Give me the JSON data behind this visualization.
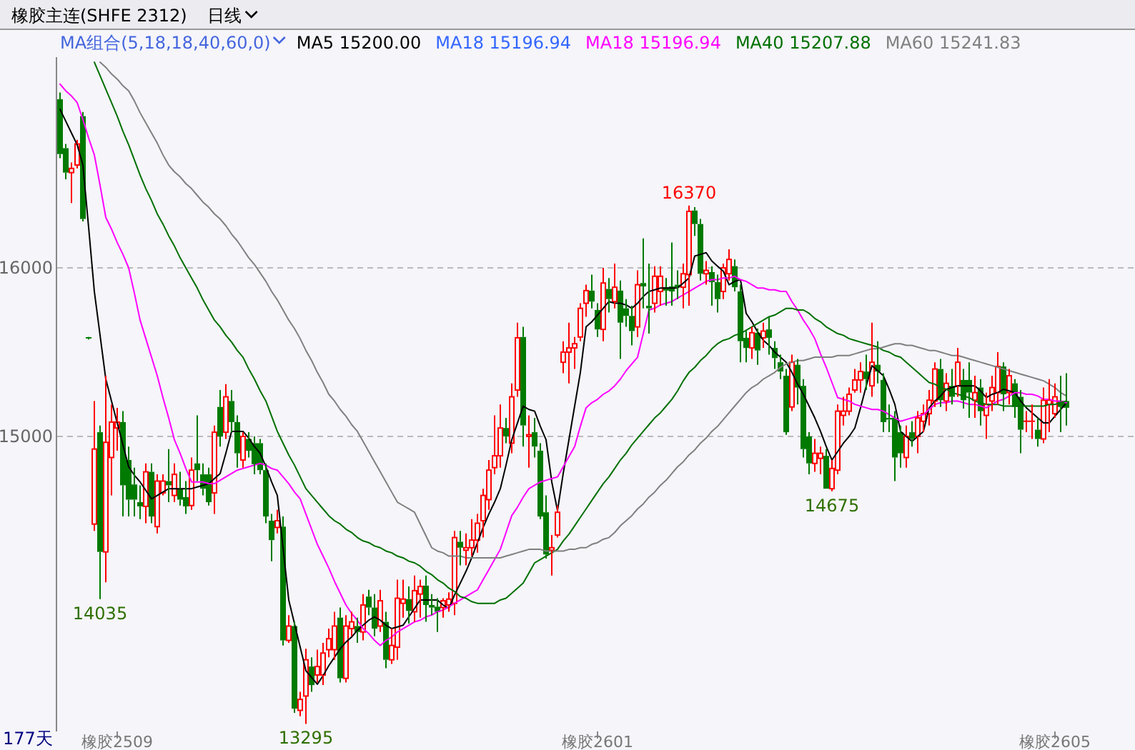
{
  "chart_data": {
    "type": "candlestick",
    "title": "橡胶主连(SHFE 2312)",
    "subtitle": "日线",
    "categories": [
      null,
      null,
      null,
      null,
      null,
      null,
      null,
      null,
      null,
      null,
      "橡胶2509",
      null,
      null,
      null,
      null,
      null,
      null,
      null,
      null,
      null,
      null,
      null,
      null,
      null,
      null,
      null,
      null,
      null,
      null,
      null,
      null,
      null,
      null,
      null,
      null,
      null,
      null,
      null,
      null,
      null,
      null,
      null,
      null,
      null,
      null,
      null,
      null,
      null,
      null,
      null,
      null,
      null,
      null,
      null,
      null,
      null,
      null,
      null,
      null,
      null,
      null,
      null,
      null,
      null,
      null,
      null,
      null,
      null,
      null,
      null,
      null,
      null,
      null,
      null,
      null,
      null,
      null,
      null,
      null,
      null,
      null,
      null,
      null,
      null,
      null,
      null,
      null,
      null,
      null,
      null,
      null,
      null,
      null,
      null,
      "橡胶2601",
      null,
      null,
      null,
      null,
      null,
      null,
      null,
      null,
      null,
      null,
      null,
      null,
      null,
      null,
      null,
      null,
      null,
      null,
      null,
      null,
      null,
      null,
      null,
      null,
      null,
      null,
      null,
      null,
      null,
      null,
      null,
      null,
      null,
      null,
      null,
      null,
      null,
      null,
      null,
      null,
      null,
      null,
      null,
      null,
      null,
      null,
      null,
      null,
      null,
      null,
      null,
      null,
      null,
      null,
      null,
      null,
      null,
      null,
      null,
      null,
      null,
      null,
      null,
      null,
      null,
      null,
      null,
      null,
      null,
      null,
      null,
      null,
      null,
      null,
      null,
      null,
      null,
      null,
      null,
      "橡胶2605",
      null,
      null
    ],
    "ohlc": [
      [
        17000,
        17040,
        16650,
        16675
      ],
      [
        16710,
        16735,
        16525,
        16565
      ],
      [
        16565,
        16625,
        16385,
        16590
      ],
      [
        16610,
        16760,
        16590,
        16735
      ],
      [
        16900,
        16925,
        16275,
        16290
      ],
      [
        15585,
        15590,
        15575,
        15580
      ],
      [
        14480,
        15210,
        14440,
        14925
      ],
      [
        15025,
        15065,
        14035,
        14315
      ],
      [
        14315,
        15360,
        14135,
        14965
      ],
      [
        14875,
        15190,
        14650,
        15085
      ],
      [
        15050,
        15170,
        14915,
        15085
      ],
      [
        15085,
        15150,
        14525,
        14710
      ],
      [
        14860,
        14940,
        14525,
        14625
      ],
      [
        14715,
        14815,
        14525,
        14625
      ],
      [
        14610,
        14710,
        14510,
        14585
      ],
      [
        14585,
        14840,
        14485,
        14790
      ],
      [
        14790,
        14840,
        14485,
        14525
      ],
      [
        14465,
        14775,
        14425,
        14735
      ],
      [
        14665,
        14775,
        14650,
        14735
      ],
      [
        14735,
        14925,
        14610,
        14710
      ],
      [
        14650,
        14840,
        14610,
        14775
      ],
      [
        14690,
        14790,
        14590,
        14625
      ],
      [
        14640,
        14735,
        14540,
        14585
      ],
      [
        14590,
        14875,
        14565,
        14800
      ],
      [
        14840,
        15125,
        14735,
        14800
      ],
      [
        14775,
        14840,
        14650,
        14690
      ],
      [
        14775,
        14815,
        14590,
        14610
      ],
      [
        14665,
        15065,
        14540,
        15025
      ],
      [
        15175,
        15275,
        14940,
        15000
      ],
      [
        15025,
        15310,
        14985,
        15235
      ],
      [
        15210,
        15275,
        15025,
        15085
      ],
      [
        15085,
        15125,
        14815,
        14900
      ],
      [
        14860,
        15025,
        14815,
        15000
      ],
      [
        14985,
        15025,
        14875,
        14915
      ],
      [
        14960,
        15000,
        14775,
        14835
      ],
      [
        14960,
        14985,
        14775,
        14800
      ],
      [
        14800,
        14840,
        14485,
        14525
      ],
      [
        14500,
        14540,
        14260,
        14385
      ],
      [
        14460,
        14565,
        14425,
        14500
      ],
      [
        14465,
        14525,
        13760,
        13790
      ],
      [
        13790,
        13940,
        13775,
        13875
      ],
      [
        13875,
        13900,
        13360,
        13385
      ],
      [
        13375,
        13485,
        13340,
        13440
      ],
      [
        13460,
        13740,
        13295,
        13675
      ],
      [
        13635,
        13690,
        13485,
        13525
      ],
      [
        13585,
        13735,
        13540,
        13635
      ],
      [
        13585,
        13775,
        13525,
        13715
      ],
      [
        13735,
        13860,
        13690,
        13800
      ],
      [
        13735,
        13960,
        13675,
        13875
      ],
      [
        13925,
        13985,
        13540,
        13565
      ],
      [
        13565,
        13940,
        13540,
        13875
      ],
      [
        13860,
        13960,
        13815,
        13900
      ],
      [
        13875,
        13925,
        13775,
        13840
      ],
      [
        13840,
        14065,
        13790,
        14000
      ],
      [
        14050,
        14090,
        13940,
        13985
      ],
      [
        13985,
        14065,
        13815,
        13860
      ],
      [
        13875,
        14090,
        13840,
        14025
      ],
      [
        13900,
        13960,
        13625,
        13675
      ],
      [
        13675,
        13860,
        13650,
        13760
      ],
      [
        13750,
        14150,
        13675,
        14040
      ],
      [
        14010,
        14150,
        13925,
        14035
      ],
      [
        14035,
        14110,
        13890,
        13965
      ],
      [
        13960,
        14175,
        13900,
        14085
      ],
      [
        14065,
        14150,
        13925,
        14110
      ],
      [
        14115,
        14175,
        13900,
        14000
      ],
      [
        14000,
        14065,
        13940,
        13985
      ],
      [
        13990,
        14040,
        13840,
        13960
      ],
      [
        13985,
        14040,
        13925,
        14025
      ],
      [
        14000,
        14075,
        13960,
        14035
      ],
      [
        14010,
        14440,
        13940,
        14400
      ],
      [
        14375,
        14440,
        14235,
        14340
      ],
      [
        14325,
        14425,
        14235,
        14340
      ],
      [
        14340,
        14510,
        14290,
        14385
      ],
      [
        14385,
        14540,
        14310,
        14485
      ],
      [
        14500,
        14690,
        14400,
        14650
      ],
      [
        14625,
        14860,
        14565,
        14800
      ],
      [
        14815,
        15125,
        14775,
        14885
      ],
      [
        14885,
        15190,
        14815,
        15050
      ],
      [
        15050,
        15110,
        14960,
        15000
      ],
      [
        14960,
        15315,
        14900,
        15235
      ],
      [
        15275,
        15675,
        15235,
        15585
      ],
      [
        15590,
        15650,
        14940,
        15065
      ],
      [
        15000,
        15125,
        14815,
        15010
      ],
      [
        15025,
        15110,
        14875,
        14940
      ],
      [
        14915,
        14960,
        14510,
        14525
      ],
      [
        14550,
        14650,
        14275,
        14300
      ],
      [
        14325,
        14415,
        14175,
        14340
      ],
      [
        14415,
        14590,
        14400,
        14550
      ],
      [
        15440,
        15565,
        15375,
        15500
      ],
      [
        15500,
        15675,
        15315,
        15525
      ],
      [
        15525,
        15590,
        15400,
        15550
      ],
      [
        15590,
        15790,
        15565,
        15760
      ],
      [
        15790,
        15900,
        15710,
        15865
      ],
      [
        15865,
        15960,
        15760,
        15800
      ],
      [
        15750,
        15790,
        15590,
        15635
      ],
      [
        15635,
        16000,
        15565,
        15910
      ],
      [
        15875,
        15940,
        15735,
        15815
      ],
      [
        15800,
        16025,
        15760,
        15885
      ],
      [
        15865,
        15925,
        15460,
        15675
      ],
      [
        15760,
        15815,
        15650,
        15715
      ],
      [
        15715,
        15775,
        15540,
        15625
      ],
      [
        15650,
        15985,
        15590,
        15900
      ],
      [
        15910,
        16175,
        15760,
        15890
      ],
      [
        15775,
        16025,
        15610,
        15760
      ],
      [
        15790,
        16010,
        15735,
        15950
      ],
      [
        15860,
        16010,
        15775,
        15950
      ],
      [
        15885,
        15940,
        15775,
        15865
      ],
      [
        15890,
        16150,
        15775,
        15860
      ],
      [
        15900,
        15985,
        15815,
        15885
      ],
      [
        15885,
        16025,
        15760,
        15965
      ],
      [
        15960,
        16370,
        15775,
        16335
      ],
      [
        16340,
        16360,
        16190,
        16260
      ],
      [
        16260,
        16290,
        15925,
        15965
      ],
      [
        15965,
        16040,
        15900,
        15985
      ],
      [
        15975,
        16010,
        15775,
        15915
      ],
      [
        15915,
        15960,
        15735,
        15815
      ],
      [
        15860,
        16025,
        15815,
        16000
      ],
      [
        15965,
        16110,
        15925,
        16050
      ],
      [
        16010,
        16050,
        15860,
        15885
      ],
      [
        15860,
        15900,
        15440,
        15565
      ],
      [
        15585,
        15625,
        15440,
        15525
      ],
      [
        15525,
        15650,
        15460,
        15615
      ],
      [
        15615,
        15640,
        15425,
        15510
      ],
      [
        15585,
        15675,
        15525,
        15625
      ],
      [
        15635,
        15710,
        15485,
        15585
      ],
      [
        15525,
        15565,
        15400,
        15465
      ],
      [
        15440,
        15485,
        15340,
        15385
      ],
      [
        15360,
        15400,
        15010,
        15025
      ],
      [
        15175,
        15485,
        15150,
        15440
      ],
      [
        15425,
        15460,
        15190,
        15290
      ],
      [
        15300,
        15340,
        14875,
        14925
      ],
      [
        15000,
        15025,
        14775,
        14840
      ],
      [
        14840,
        14985,
        14790,
        14900
      ],
      [
        14870,
        14940,
        14775,
        14900
      ],
      [
        14885,
        14925,
        14690,
        14690
      ],
      [
        14690,
        14860,
        14675,
        14810
      ],
      [
        14800,
        15190,
        14775,
        15150
      ],
      [
        15125,
        15235,
        15065,
        15150
      ],
      [
        15150,
        15290,
        15125,
        15250
      ],
      [
        15275,
        15400,
        15260,
        15335
      ],
      [
        15335,
        15440,
        15260,
        15385
      ],
      [
        15385,
        15485,
        15275,
        15340
      ],
      [
        15300,
        15675,
        15235,
        15440
      ],
      [
        15425,
        15565,
        15315,
        15385
      ],
      [
        15335,
        15375,
        15025,
        15085
      ],
      [
        15110,
        15190,
        15025,
        15100
      ],
      [
        15110,
        15150,
        14735,
        14875
      ],
      [
        15025,
        15065,
        14815,
        14900
      ],
      [
        14875,
        15065,
        14815,
        15000
      ],
      [
        15025,
        15090,
        14940,
        14985
      ],
      [
        15000,
        15150,
        14900,
        15110
      ],
      [
        15090,
        15190,
        15025,
        15135
      ],
      [
        15135,
        15275,
        15065,
        15215
      ],
      [
        15210,
        15440,
        15175,
        15400
      ],
      [
        15400,
        15460,
        15175,
        15215
      ],
      [
        15210,
        15375,
        15150,
        15315
      ],
      [
        15300,
        15400,
        15190,
        15235
      ],
      [
        15300,
        15525,
        15235,
        15440
      ],
      [
        15335,
        15400,
        15165,
        15215
      ],
      [
        15335,
        15440,
        15110,
        15260
      ],
      [
        15215,
        15360,
        15110,
        15260
      ],
      [
        15290,
        15340,
        15065,
        15150
      ],
      [
        15125,
        15260,
        14985,
        15190
      ],
      [
        15210,
        15360,
        15150,
        15290
      ],
      [
        15260,
        15500,
        15190,
        15415
      ],
      [
        15415,
        15440,
        15150,
        15250
      ],
      [
        15260,
        15400,
        15190,
        15360
      ],
      [
        15315,
        15340,
        15110,
        15175
      ],
      [
        15235,
        15275,
        14900,
        15040
      ],
      [
        15090,
        15150,
        15025,
        15090
      ],
      [
        15085,
        15190,
        14985,
        15090
      ],
      [
        15040,
        15110,
        14940,
        14985
      ],
      [
        14985,
        15290,
        14960,
        15215
      ],
      [
        15190,
        15340,
        15025,
        15215
      ],
      [
        15135,
        15315,
        15110,
        15235
      ],
      [
        15210,
        15360,
        15025,
        15175
      ],
      [
        15210,
        15375,
        15065,
        15170
      ]
    ],
    "series": [
      {
        "name": "MA5 15200.00",
        "type": "line",
        "color": "#000000",
        "values": [
          16940,
          16870,
          16800,
          16730,
          16610,
          16240,
          15860,
          15600,
          15340,
          15210,
          15080,
          14950,
          14820,
          14770,
          14730,
          14680,
          14630,
          14650,
          14670,
          14690,
          14690,
          14690,
          14690,
          14690,
          14700,
          14710,
          14720,
          14750,
          14780,
          14900,
          15030,
          15030,
          15030,
          14990,
          14940,
          14900,
          14820,
          14730,
          14650,
          14340,
          14030,
          13890,
          13750,
          13610,
          13570,
          13530,
          13580,
          13640,
          13690,
          13740,
          13780,
          13810,
          13850,
          13880,
          13910,
          13930,
          13910,
          13880,
          13860,
          13870,
          13880,
          13930,
          13980,
          14030,
          14030,
          14030,
          14030,
          14000,
          13980,
          14060,
          14130,
          14200,
          14280,
          14370,
          14460,
          14540,
          14610,
          14690,
          14830,
          14980,
          15080,
          15180,
          15160,
          15150,
          15060,
          14980,
          14730,
          14560,
          14780,
          14980,
          15180,
          15380,
          15650,
          15680,
          15720,
          15760,
          15800,
          15790,
          15790,
          15780,
          15760,
          15790,
          15830,
          15860,
          15870,
          15880,
          15880,
          15880,
          15880,
          15910,
          15940,
          16070,
          16080,
          16090,
          16040,
          16010,
          15980,
          15900,
          15920,
          15930,
          15730,
          15680,
          15620,
          15570,
          15540,
          15500,
          15470,
          15440,
          15380,
          15310,
          15250,
          15180,
          15110,
          15030,
          14940,
          14860,
          14910,
          14960,
          15000,
          15050,
          15170,
          15300,
          15420,
          15390,
          15360,
          15280,
          15190,
          15030,
          15000,
          14970,
          15000,
          15030,
          15170,
          15210,
          15240,
          15280,
          15290,
          15300,
          15300,
          15300,
          15300,
          15270,
          15230,
          15250,
          15260,
          15280,
          15270,
          15260,
          15210,
          15170,
          15140,
          15110,
          15080,
          15080,
          15120,
          15160,
          15200
        ]
      },
      {
        "name": "MA18 15196.94",
        "type": "line",
        "color": "#3366ff",
        "values": [
          null,
          null,
          null,
          null,
          null,
          null,
          null,
          null,
          null,
          null,
          null,
          null,
          null,
          null,
          null,
          null,
          null,
          null,
          null,
          null,
          null,
          null,
          null,
          null,
          null,
          null,
          null,
          null,
          null,
          null,
          null,
          null,
          null,
          null,
          null,
          null,
          null,
          null,
          null,
          null,
          null,
          null,
          null,
          null,
          null,
          null,
          null,
          null,
          null,
          null,
          null,
          null,
          null,
          null,
          null,
          null,
          null,
          null,
          null,
          null,
          null,
          null,
          null,
          null,
          null,
          null,
          null,
          null,
          null,
          null,
          null,
          null,
          null,
          null,
          null,
          null,
          null,
          null,
          null,
          null,
          null,
          null,
          null,
          null,
          null,
          null,
          null,
          null,
          null,
          null,
          null,
          null,
          null,
          null,
          null,
          null,
          null,
          null,
          null,
          null,
          null,
          null,
          null,
          null,
          null,
          null,
          null,
          null,
          null,
          null,
          null,
          null,
          null,
          null,
          null,
          null,
          null,
          null,
          null,
          null,
          null,
          null,
          null,
          null,
          null,
          null,
          null,
          null,
          null,
          null,
          null,
          null,
          null,
          null,
          null,
          null,
          null,
          null,
          null,
          null,
          null,
          null,
          null,
          null,
          null,
          null,
          null,
          null,
          null,
          null,
          null,
          null,
          null,
          null,
          null,
          null,
          null,
          null,
          null,
          null,
          null,
          null,
          null,
          null,
          null,
          null,
          null,
          null,
          null,
          null,
          null,
          null,
          null,
          null,
          null,
          null,
          null
        ]
      },
      {
        "name": "MA18 15196.94",
        "type": "line",
        "color": "#ff00ff",
        "values": [
          17090,
          17050,
          17020,
          16980,
          16880,
          16770,
          16670,
          16490,
          16300,
          16230,
          16150,
          16080,
          16000,
          15850,
          15690,
          15580,
          15470,
          15360,
          15230,
          15110,
          14980,
          14900,
          14810,
          14730,
          14730,
          14730,
          14720,
          14720,
          14740,
          14760,
          14780,
          14800,
          14810,
          14820,
          14830,
          14840,
          14830,
          14810,
          14800,
          14760,
          14720,
          14670,
          14630,
          14540,
          14450,
          14360,
          14290,
          14220,
          14140,
          14070,
          14000,
          13950,
          13910,
          13860,
          13830,
          13790,
          13760,
          13790,
          13810,
          13840,
          13860,
          13880,
          13900,
          13910,
          13930,
          13940,
          13960,
          13970,
          13990,
          14010,
          14030,
          14050,
          14070,
          14090,
          14150,
          14210,
          14270,
          14330,
          14430,
          14530,
          14580,
          14640,
          14690,
          14710,
          14730,
          14740,
          14750,
          14760,
          14820,
          14880,
          14940,
          15060,
          15170,
          15200,
          15220,
          15250,
          15270,
          15300,
          15340,
          15390,
          15430,
          15470,
          15610,
          15750,
          15760,
          15780,
          15790,
          15800,
          15820,
          15840,
          15860,
          15880,
          15900,
          15920,
          15930,
          15930,
          15940,
          15940,
          15950,
          15930,
          15920,
          15900,
          15880,
          15880,
          15870,
          15870,
          15860,
          15860,
          15800,
          15750,
          15690,
          15640,
          15580,
          15490,
          15410,
          15320,
          15230,
          15220,
          15210,
          15190,
          15180,
          15170,
          15160,
          15160,
          15150,
          15130,
          15110,
          15090,
          15100,
          15110,
          15120,
          15130,
          15160,
          15190,
          15200,
          15200,
          15210,
          15210,
          15200,
          15190,
          15190,
          15180,
          15170,
          15190,
          15210,
          15220,
          15240,
          15260,
          15260,
          15250,
          15250,
          15240,
          15220,
          15220,
          15210,
          15210,
          15200
        ]
      },
      {
        "name": "MA40 15207.88",
        "type": "line",
        "color": "#007000",
        "values": [
          null,
          null,
          null,
          null,
          null,
          null,
          17220,
          17140,
          17060,
          16980,
          16900,
          16810,
          16730,
          16640,
          16550,
          16470,
          16400,
          16320,
          16260,
          16190,
          16130,
          16060,
          16000,
          15940,
          15880,
          15810,
          15750,
          15690,
          15650,
          15600,
          15560,
          15510,
          15470,
          15400,
          15340,
          15270,
          15210,
          15120,
          15030,
          14960,
          14890,
          14830,
          14760,
          14690,
          14650,
          14610,
          14570,
          14530,
          14500,
          14480,
          14450,
          14430,
          14400,
          14380,
          14370,
          14350,
          14340,
          14320,
          14310,
          14290,
          14280,
          14260,
          14250,
          14230,
          14200,
          14180,
          14150,
          14130,
          14100,
          14080,
          14050,
          14040,
          14020,
          14010,
          14010,
          14010,
          14010,
          14030,
          14040,
          14070,
          14100,
          14130,
          14190,
          14250,
          14270,
          14290,
          14310,
          14330,
          14380,
          14420,
          14470,
          14520,
          14570,
          14620,
          14670,
          14720,
          14760,
          14810,
          14860,
          14900,
          14950,
          14990,
          15030,
          15070,
          15110,
          15140,
          15180,
          15220,
          15270,
          15330,
          15380,
          15410,
          15450,
          15480,
          15520,
          15550,
          15570,
          15580,
          15600,
          15610,
          15630,
          15650,
          15670,
          15690,
          15710,
          15720,
          15740,
          15760,
          15760,
          15750,
          15750,
          15730,
          15700,
          15680,
          15650,
          15630,
          15610,
          15600,
          15580,
          15570,
          15560,
          15550,
          15540,
          15530,
          15510,
          15500,
          15480,
          15470,
          15440,
          15410,
          15380,
          15350,
          15320,
          15310,
          15290,
          15280,
          15260,
          15250,
          15240,
          15230,
          15210,
          15200,
          15190,
          15190,
          15190,
          15180,
          15180,
          15180,
          15180,
          15180,
          15180,
          15180,
          15180,
          15190,
          15190,
          15200,
          15210
        ]
      },
      {
        "name": "MA60 15241.83",
        "type": "line",
        "color": "#808080",
        "values": [
          null,
          null,
          null,
          null,
          null,
          null,
          null,
          17220,
          17190,
          17150,
          17120,
          17080,
          17050,
          16990,
          16920,
          16860,
          16800,
          16740,
          16670,
          16610,
          16570,
          16540,
          16500,
          16470,
          16430,
          16390,
          16360,
          16320,
          16290,
          16250,
          16200,
          16160,
          16110,
          16060,
          16020,
          15970,
          15920,
          15860,
          15810,
          15750,
          15690,
          15640,
          15580,
          15510,
          15450,
          15380,
          15320,
          15250,
          15210,
          15160,
          15120,
          15070,
          15030,
          14970,
          14910,
          14850,
          14790,
          14730,
          14670,
          14610,
          14590,
          14570,
          14550,
          14480,
          14410,
          14340,
          14320,
          14310,
          14290,
          14290,
          14290,
          14280,
          14280,
          14280,
          14280,
          14280,
          14280,
          14280,
          14290,
          14300,
          14310,
          14320,
          14330,
          14330,
          14330,
          14320,
          14320,
          14320,
          14320,
          14330,
          14330,
          14340,
          14340,
          14360,
          14370,
          14390,
          14400,
          14430,
          14470,
          14500,
          14530,
          14570,
          14600,
          14640,
          14670,
          14710,
          14740,
          14780,
          14820,
          14850,
          14890,
          14920,
          14960,
          14990,
          15030,
          15060,
          15100,
          15140,
          15180,
          15220,
          15260,
          15290,
          15310,
          15340,
          15360,
          15380,
          15410,
          15430,
          15440,
          15450,
          15450,
          15460,
          15470,
          15470,
          15470,
          15470,
          15480,
          15480,
          15480,
          15490,
          15500,
          15510,
          15520,
          15520,
          15530,
          15540,
          15550,
          15550,
          15540,
          15540,
          15530,
          15520,
          15510,
          15510,
          15500,
          15490,
          15480,
          15480,
          15470,
          15460,
          15450,
          15440,
          15430,
          15420,
          15410,
          15400,
          15390,
          15380,
          15370,
          15360,
          15350,
          15340,
          15330,
          15310,
          15290,
          15260,
          15240
        ]
      }
    ],
    "ylim": [
      13250,
      17250
    ],
    "yticks": [
      15000,
      16000
    ],
    "grid": "y",
    "legend": "top",
    "annotations": [
      "MA组合(5,18,18,40,60,0)",
      "177天",
      {
        "text": "16370",
        "y": 16370
      },
      {
        "text": "14035",
        "y": 14035
      },
      {
        "text": "13295",
        "y": 13295
      },
      {
        "text": "14675",
        "y": 14675
      }
    ]
  }
}
